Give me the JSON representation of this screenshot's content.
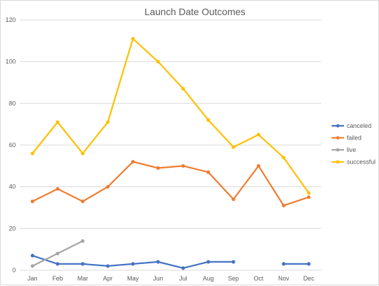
{
  "chart_data": {
    "type": "line",
    "title": "Launch Date Outcomes",
    "xlabel": "",
    "ylabel": "",
    "categories": [
      "Jan",
      "Feb",
      "Mar",
      "Apr",
      "May",
      "Jun",
      "Jul",
      "Aug",
      "Sep",
      "Oct",
      "Nov",
      "Dec"
    ],
    "ylim": [
      0,
      120
    ],
    "yticks": [
      "0",
      "20",
      "40",
      "60",
      "80",
      "100",
      "120"
    ],
    "grid": true,
    "legend_position": "right",
    "series": [
      {
        "name": "canceled",
        "color": "#4472c4",
        "values": [
          7,
          3,
          3,
          2,
          3,
          4,
          1,
          4,
          4,
          null,
          3,
          3
        ]
      },
      {
        "name": "failed",
        "color": "#ed7d31",
        "values": [
          33,
          39,
          33,
          40,
          52,
          49,
          50,
          47,
          34,
          50,
          31,
          35
        ]
      },
      {
        "name": "live",
        "color": "#a5a5a5",
        "values": [
          2,
          8,
          14,
          null,
          null,
          null,
          null,
          null,
          null,
          null,
          null,
          null
        ]
      },
      {
        "name": "successful",
        "color": "#ffc000",
        "values": [
          56,
          71,
          56,
          71,
          111,
          100,
          87,
          72,
          59,
          65,
          54,
          37
        ]
      }
    ]
  }
}
